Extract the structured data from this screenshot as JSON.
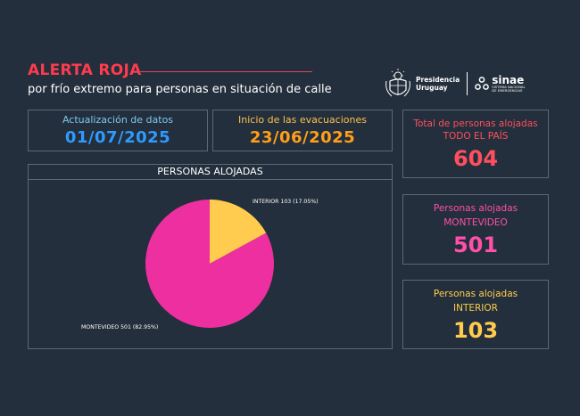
{
  "header": {
    "title": "ALERTA ROJA",
    "subtitle": "por frío extremo para personas en situación de calle"
  },
  "logos": {
    "presidencia_line1": "Presidencia",
    "presidencia_line2": "Uruguay",
    "sinae_name": "sinae",
    "sinae_sub1": "SISTEMA NACIONAL",
    "sinae_sub2": "DE EMERGENCIAS"
  },
  "dates": {
    "update_label": "Actualización de datos",
    "update_value": "01/07/2025",
    "evac_label": "Inicio de las evacuaciones",
    "evac_value": "23/06/2025"
  },
  "stats": {
    "total_label": "Total de personas alojadas",
    "total_sub": "TODO EL PAÍS",
    "total_value": "604",
    "mvd_label": "Personas alojadas",
    "mvd_sub": "MONTEVIDEO",
    "mvd_value": "501",
    "int_label": "Personas alojadas",
    "int_sub": "INTERIOR",
    "int_value": "103"
  },
  "colors": {
    "title_red": "#ff3b4e",
    "update_blue": "#7fc8f0",
    "update_value_blue": "#2f9bff",
    "evac_orange": "#ffc04d",
    "evac_value_orange": "#ff9f1a",
    "total_red": "#ff4f5e",
    "pink": "#ff4fa8",
    "yellow": "#ffcc4d",
    "pie_pink": "#ee2fa0",
    "pie_yellow": "#ffcc50"
  },
  "chart_data": {
    "type": "pie",
    "title": "PERSONAS ALOJADAS",
    "labels": [
      "MONTEVIDEO",
      "INTERIOR"
    ],
    "values": [
      501,
      103
    ],
    "percentages": [
      82.95,
      17.05
    ],
    "data_labels": [
      "MONTEVIDEO 501 (82.95%)",
      "INTERIOR 103 (17.05%)"
    ],
    "colors": [
      "#ee2fa0",
      "#ffcc50"
    ]
  }
}
